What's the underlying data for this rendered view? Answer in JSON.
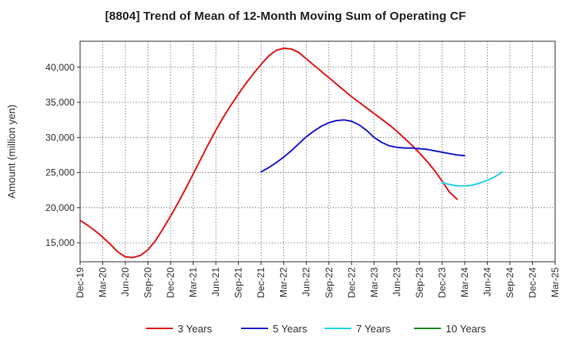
{
  "chart_data": {
    "type": "line",
    "title": "[8804]  Trend of Mean of 12-Month Moving Sum of Operating CF",
    "xlabel": "",
    "ylabel": "Amount (million yen)",
    "ylim": [
      12300,
      43700
    ],
    "yticks": [
      15000,
      20000,
      25000,
      30000,
      35000,
      40000
    ],
    "ytick_labels": [
      "15,000",
      "20,000",
      "25,000",
      "30,000",
      "35,000",
      "40,000"
    ],
    "xtick_labels": [
      "Dec-19",
      "Mar-20",
      "Jun-20",
      "Sep-20",
      "Dec-20",
      "Mar-21",
      "Jun-21",
      "Sep-21",
      "Dec-21",
      "Mar-22",
      "Jun-22",
      "Sep-22",
      "Dec-22",
      "Mar-23",
      "Jun-23",
      "Sep-23",
      "Dec-23",
      "Mar-24",
      "Jun-24",
      "Sep-24",
      "Dec-24",
      "Mar-25"
    ],
    "grid": true,
    "series": [
      {
        "name": "3 Years",
        "color": "#e31a1c",
        "x": [
          0,
          1,
          2,
          3,
          4,
          5,
          6,
          7,
          8,
          9,
          10,
          11,
          12,
          13,
          14,
          15,
          16,
          17,
          18,
          19,
          20,
          21,
          22,
          23,
          24,
          25,
          26,
          27,
          28,
          29,
          30,
          31,
          32,
          33,
          34,
          35,
          36,
          37,
          38,
          39,
          40,
          41,
          42,
          43,
          44,
          45,
          46,
          47,
          48,
          49,
          50,
          51,
          52,
          53,
          54,
          55,
          56,
          57,
          58,
          59,
          60
        ],
        "values": [
          18200,
          17500,
          16700,
          15800,
          14800,
          13700,
          13000,
          12900,
          13200,
          14000,
          15300,
          17000,
          18800,
          20700,
          22700,
          24800,
          26900,
          29000,
          31000,
          32900,
          34600,
          36200,
          37700,
          39100,
          40400,
          41600,
          42400,
          42700,
          42600,
          42100,
          41200,
          40300,
          39400,
          38500,
          37600,
          36700,
          35800,
          35000,
          34200,
          33400,
          32600,
          31800,
          30900,
          29900,
          28900,
          27800,
          26600,
          25300,
          23800,
          22200,
          21200,
          null,
          null,
          null,
          null,
          null,
          null,
          null,
          null,
          null,
          null
        ]
      },
      {
        "name": "5 Years",
        "color": "#1f1fcc",
        "x": [
          24,
          25,
          26,
          27,
          28,
          29,
          30,
          31,
          32,
          33,
          34,
          35,
          36,
          37,
          38,
          39,
          40,
          41,
          42,
          43,
          44,
          45,
          46,
          47,
          48,
          49,
          50,
          51,
          52,
          53,
          54,
          55,
          56,
          57,
          58,
          59,
          60
        ],
        "values": [
          25100,
          25700,
          26400,
          27200,
          28100,
          29100,
          30100,
          30900,
          31600,
          32100,
          32400,
          32500,
          32300,
          31800,
          31000,
          30000,
          29300,
          28800,
          28600,
          28500,
          28500,
          28400,
          28300,
          28100,
          27900,
          27700,
          27500,
          27400,
          null,
          null,
          null,
          null,
          null,
          null,
          null,
          null,
          null
        ]
      },
      {
        "name": "7 Years",
        "color": "#22d3ee",
        "x": [
          48,
          49,
          50,
          51,
          52,
          53,
          54,
          55,
          56,
          57,
          58,
          59,
          60
        ],
        "values": [
          23600,
          23300,
          23100,
          23100,
          23200,
          23500,
          23900,
          24400,
          25100,
          null,
          null,
          null,
          null
        ]
      },
      {
        "name": "10 Years",
        "color": "#1f8a1f",
        "x": [],
        "values": []
      }
    ]
  }
}
